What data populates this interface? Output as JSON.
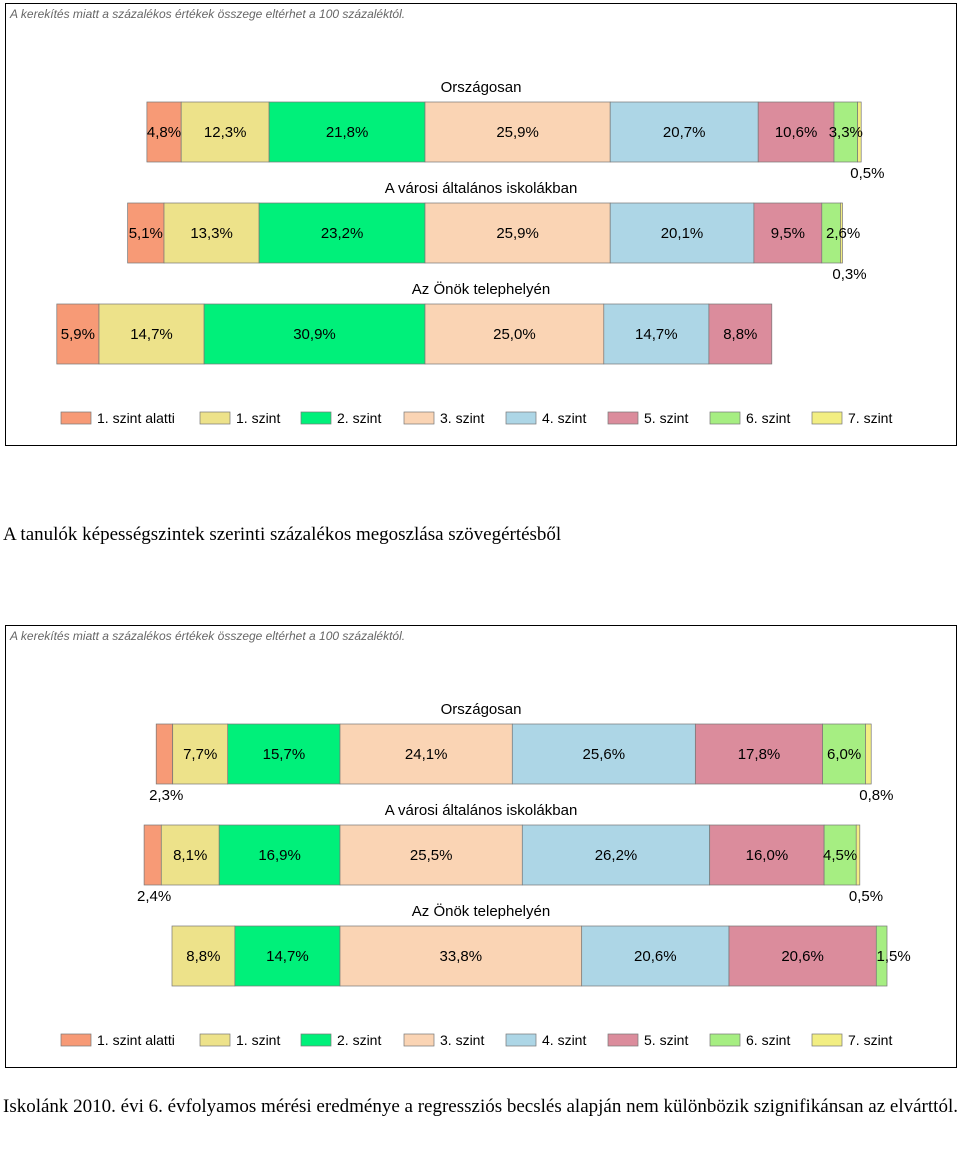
{
  "note": "A kerekítés miatt a százalékos értékek összege eltérhet a 100 százaléktól.",
  "caption_middle": "A tanulók képességszintek szerinti százalékos megoszlása szövegértésből",
  "caption_bottom": "Iskolánk 2010. évi 6. évfolyamos mérési eredménye a regressziós becslés alapján nem különbözik szignifikánsan az elvárttól.",
  "legend": [
    "1. szint alatti",
    "1. szint",
    "2. szint",
    "3. szint",
    "4. szint",
    "5. szint",
    "6. szint",
    "7. szint"
  ],
  "colors": [
    "#f79a76",
    "#ede28a",
    "#00f07a",
    "#fad4b4",
    "#add6e6",
    "#db8c9c",
    "#a6ee82",
    "#f2ee82"
  ],
  "chart_data": [
    {
      "type": "bar",
      "orientation": "horizontal-stacked-100",
      "series_names": [
        "1. szint alatti",
        "1. szint",
        "2. szint",
        "3. szint",
        "4. szint",
        "5. szint",
        "6. szint",
        "7. szint"
      ],
      "groups": [
        {
          "title": "Országosan",
          "values": [
            4.8,
            12.3,
            21.8,
            25.9,
            20.7,
            10.6,
            3.3,
            0.5
          ],
          "labels": [
            "4,8%",
            "12,3%",
            "21,8%",
            "25,9%",
            "20,7%",
            "10,6%",
            "3,3%",
            "0,5%"
          ]
        },
        {
          "title": "A városi általános iskolákban",
          "values": [
            5.1,
            13.3,
            23.2,
            25.9,
            20.1,
            9.5,
            2.6,
            0.3
          ],
          "labels": [
            "5,1%",
            "13,3%",
            "23,2%",
            "25,9%",
            "20,1%",
            "9,5%",
            "2,6%",
            "0,3%"
          ]
        },
        {
          "title": "Az Önök telephelyén",
          "values": [
            5.9,
            14.7,
            30.9,
            25.0,
            14.7,
            8.8,
            0,
            0
          ],
          "labels": [
            "5,9%",
            "14,7%",
            "30,9%",
            "25,0%",
            "14,7%",
            "8,8%",
            "",
            ""
          ]
        }
      ]
    },
    {
      "type": "bar",
      "orientation": "horizontal-stacked-100",
      "series_names": [
        "1. szint alatti",
        "1. szint",
        "2. szint",
        "3. szint",
        "4. szint",
        "5. szint",
        "6. szint",
        "7. szint"
      ],
      "groups": [
        {
          "title": "Országosan",
          "values": [
            2.3,
            7.7,
            15.7,
            24.1,
            25.6,
            17.8,
            6.0,
            0.8
          ],
          "labels": [
            "2,3%",
            "7,7%",
            "15,7%",
            "24,1%",
            "25,6%",
            "17,8%",
            "6,0%",
            "0,8%"
          ]
        },
        {
          "title": "A városi általános iskolákban",
          "values": [
            2.4,
            8.1,
            16.9,
            25.5,
            26.2,
            16.0,
            4.5,
            0.5
          ],
          "labels": [
            "2,4%",
            "8,1%",
            "16,9%",
            "25,5%",
            "26,2%",
            "16,0%",
            "4,5%",
            "0,5%"
          ]
        },
        {
          "title": "Az Önök telephelyén",
          "values": [
            0,
            8.8,
            14.7,
            33.8,
            20.6,
            20.6,
            1.5,
            0
          ],
          "labels": [
            "",
            "8,8%",
            "14,7%",
            "33,8%",
            "20,6%",
            "20,6%",
            "1,5%",
            ""
          ]
        }
      ]
    }
  ]
}
